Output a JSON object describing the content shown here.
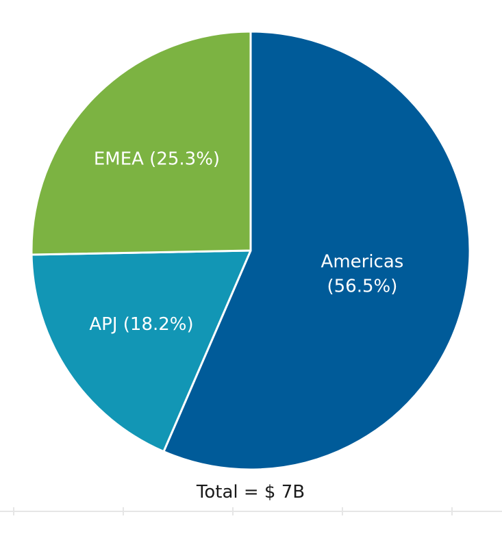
{
  "chart_data": {
    "type": "pie",
    "title": "",
    "slices": [
      {
        "name": "Americas",
        "percent": 56.5,
        "label_lines": [
          "Americas",
          "(56.5%)"
        ],
        "color": "#005b99"
      },
      {
        "name": "APJ",
        "percent": 18.2,
        "label_lines": [
          "APJ (18.2%)"
        ],
        "color": "#1296b5"
      },
      {
        "name": "EMEA",
        "percent": 25.3,
        "label_lines": [
          "EMEA (25.3%)"
        ],
        "color": "#7cb342"
      }
    ],
    "start": "top",
    "direction": "clockwise",
    "total_label": "Total = $ 7B",
    "legend": "none",
    "baseline_color": "#e6e6e6"
  }
}
